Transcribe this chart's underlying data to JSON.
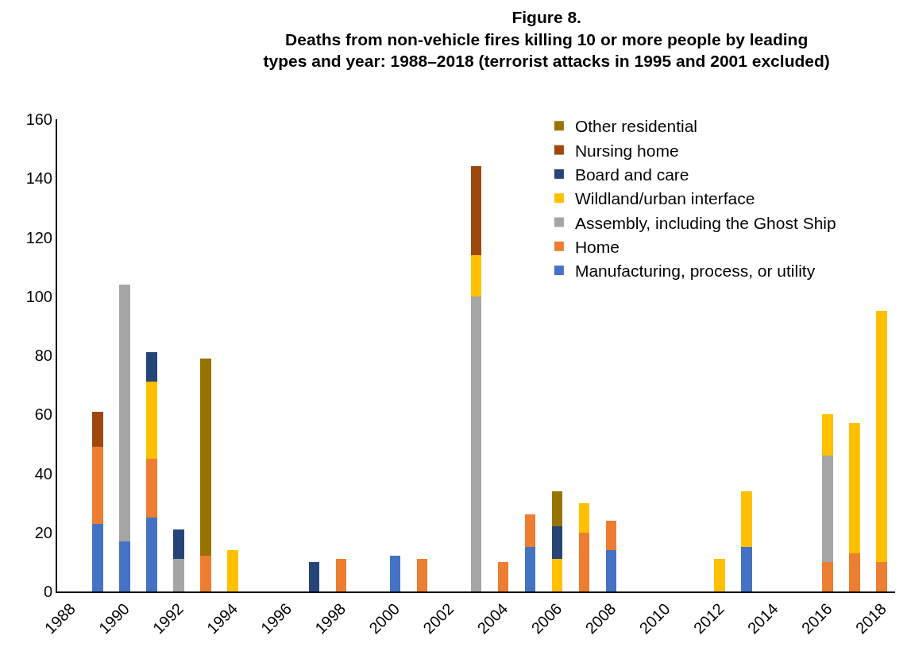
{
  "chart_data": {
    "type": "bar",
    "stacked": true,
    "title": "Figure 8.\nDeaths from non-vehicle fires killing 10 or more people by leading\ntypes and year: 1988–2018 (terrorist attacks in 1995 and 2001 excluded)",
    "categories": [
      "1988",
      null,
      "1990",
      null,
      "1992",
      null,
      "1994",
      null,
      "1996",
      null,
      "1998",
      null,
      "2000",
      null,
      "2002",
      null,
      "2004",
      null,
      "2006",
      null,
      "2008",
      null,
      "2010",
      null,
      "2012",
      null,
      "2014",
      null,
      "2016",
      null,
      "2018"
    ],
    "series": [
      {
        "name": "Manufacturing, process, or utility",
        "color": "#4472c4",
        "values": [
          null,
          23,
          17,
          25,
          null,
          null,
          null,
          null,
          null,
          null,
          null,
          null,
          12,
          null,
          null,
          null,
          null,
          15,
          null,
          null,
          14,
          null,
          null,
          null,
          null,
          15,
          null,
          null,
          null,
          null,
          null
        ]
      },
      {
        "name": "Home",
        "color": "#ed7d31",
        "values": [
          null,
          26,
          null,
          20,
          null,
          12,
          null,
          null,
          null,
          null,
          11,
          null,
          null,
          11,
          null,
          null,
          10,
          11,
          null,
          20,
          10,
          null,
          null,
          null,
          null,
          null,
          null,
          null,
          10,
          13,
          10
        ]
      },
      {
        "name": "Assembly, including the Ghost Ship",
        "color": "#a5a5a5",
        "values": [
          null,
          null,
          87,
          null,
          11,
          null,
          null,
          null,
          null,
          null,
          null,
          null,
          null,
          null,
          null,
          100,
          null,
          null,
          null,
          null,
          null,
          null,
          null,
          null,
          null,
          null,
          null,
          null,
          36,
          null,
          null
        ]
      },
      {
        "name": "Wildland/urban interface",
        "color": "#ffc000",
        "values": [
          null,
          null,
          null,
          26,
          null,
          null,
          14,
          null,
          null,
          null,
          null,
          null,
          null,
          null,
          null,
          14,
          null,
          null,
          11,
          10,
          null,
          null,
          null,
          null,
          11,
          19,
          null,
          null,
          14,
          44,
          85
        ]
      },
      {
        "name": "Board and care",
        "color": "#264478",
        "values": [
          null,
          null,
          null,
          10,
          10,
          null,
          null,
          null,
          null,
          10,
          null,
          null,
          null,
          null,
          null,
          null,
          null,
          null,
          11,
          null,
          null,
          null,
          null,
          null,
          null,
          null,
          null,
          null,
          null,
          null,
          null
        ]
      },
      {
        "name": "Nursing home",
        "color": "#9e480e",
        "values": [
          null,
          12,
          null,
          null,
          null,
          null,
          null,
          null,
          null,
          null,
          null,
          null,
          null,
          null,
          null,
          30,
          null,
          null,
          null,
          null,
          null,
          null,
          null,
          null,
          null,
          null,
          null,
          null,
          null,
          null,
          null
        ]
      },
      {
        "name": "Other residential",
        "color": "#997300",
        "values": [
          null,
          null,
          null,
          null,
          null,
          67,
          null,
          null,
          null,
          null,
          null,
          null,
          null,
          null,
          null,
          null,
          null,
          null,
          12,
          null,
          null,
          null,
          null,
          null,
          null,
          null,
          null,
          null,
          null,
          null,
          null
        ]
      }
    ],
    "ylim": [
      0,
      160
    ],
    "yticks": [
      0,
      20,
      40,
      60,
      80,
      100,
      120,
      140,
      160
    ],
    "legend": "top right"
  }
}
